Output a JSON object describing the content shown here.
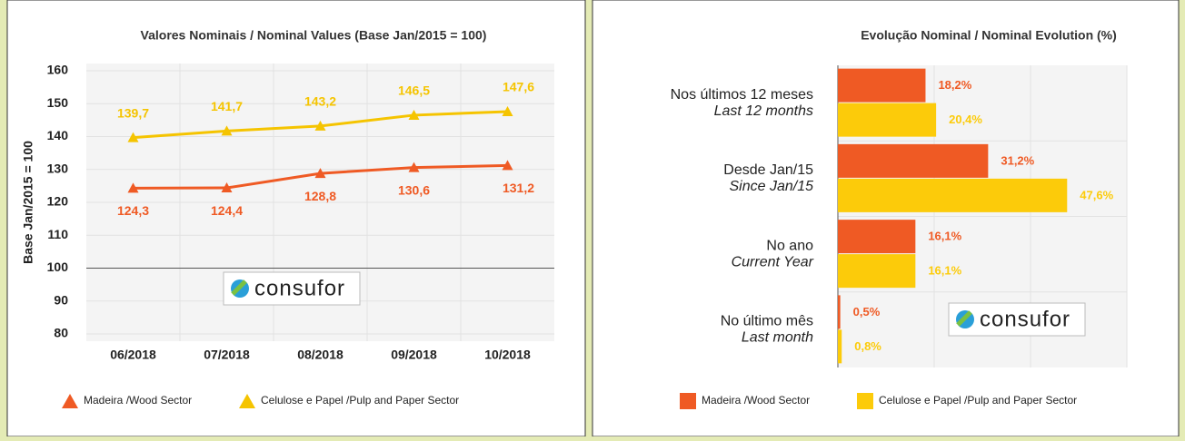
{
  "watermark": "consufor",
  "chart_data": [
    {
      "type": "line",
      "title": "Valores Nominais / Nominal Values (Base Jan/2015 = 100)",
      "y_label": "Base Jan/2015 = 100",
      "categories": [
        "06/2018",
        "07/2018",
        "08/2018",
        "09/2018",
        "10/2018"
      ],
      "series": [
        {
          "name": "Madeira /Wood Sector",
          "color": "#ef5a24",
          "values": [
            124.3,
            124.4,
            128.8,
            130.6,
            131.2
          ],
          "value_labels": [
            "124,3",
            "124,4",
            "128,8",
            "130,6",
            "131,2"
          ]
        },
        {
          "name": "Celulose e Papel /Pulp and Paper Sector",
          "color": "#f5c400",
          "values": [
            139.7,
            141.7,
            143.2,
            146.5,
            147.6
          ],
          "value_labels": [
            "139,7",
            "141,7",
            "143,2",
            "146,5",
            "147,6"
          ]
        }
      ],
      "ylim": [
        80,
        160
      ],
      "yticks": [
        80,
        90,
        100,
        110,
        120,
        130,
        140,
        150,
        160
      ],
      "grid": true
    },
    {
      "type": "barh",
      "title": "Evolução Nominal / Nominal Evolution (%)",
      "categories": [
        "Nos últimos 12 meses",
        "Desde Jan/15",
        "No ano",
        "No último mês"
      ],
      "categories_en": [
        "Last 12 months",
        "Since Jan/15",
        "Current Year",
        "Last month"
      ],
      "series": [
        {
          "name": "Madeira /Wood Sector",
          "color": "#ef5a24",
          "values": [
            18.2,
            31.2,
            16.1,
            0.5
          ],
          "value_labels": [
            "18,2%",
            "31,2%",
            "16,1%",
            "0,5%"
          ]
        },
        {
          "name": "Celulose e Papel /Pulp and Paper Sector",
          "color": "#fccb0a",
          "values": [
            20.4,
            47.6,
            16.1,
            0.8
          ],
          "value_labels": [
            "20,4%",
            "47,6%",
            "16,1%",
            "0,8%"
          ]
        }
      ],
      "xlim": [
        0,
        60
      ],
      "xticks": [
        0,
        20,
        40,
        60
      ],
      "grid": true
    }
  ]
}
